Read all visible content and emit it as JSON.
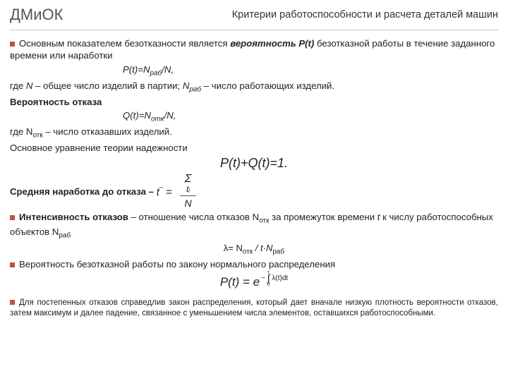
{
  "header": {
    "left": "ДМиОК",
    "right": "Критерии работоспособности и расчета деталей машин"
  },
  "body": {
    "p1a": "Основным показателем безотказности является ",
    "p1b": "вероятность P(t)",
    "p1c": " безотказной работы в течение заданного времени или наработки",
    "eq1": "P(t)=N",
    "eq1sub": "раб",
    "eq1tail": "/N,",
    "p2a": "где ",
    "p2b": "N",
    "p2c": " – общее число изделий в партии; ",
    "p2d": "N",
    "p2dsub": "раб",
    "p2e": " – число работающих изделий.",
    "p3": "Вероятность отказа",
    "eq2": "Q(t)=N",
    "eq2sub": "отк",
    "eq2tail": "/N,",
    "p4a": "где N",
    "p4sub": "отк",
    "p4b": " – число отказавших изделий.",
    "p5": "Основное уравнение теории надежности",
    "eq3": "P(t)+Q(t)=1.",
    "p6": "Средняя наработка до отказа –",
    "t_eq_lhs": "t‾ = ",
    "t_eq_num_sigma": "Σ",
    "t_eq_num_t": "tᵢ",
    "t_eq_den": "N",
    "p7a": "Интенсивность отказов",
    "p7b": " – отношение числа отказов N",
    "p7sub": "отк",
    "p7c": " за промежуток времени ",
    "p7d": "t",
    "p7e": " к числу работоспособных объектов N",
    "p7sub2": "раб",
    "lambda_a": "λ= N",
    "lambda_sub1": "отк",
    "lambda_mid": " / t·N",
    "lambda_sub2": "раб",
    "p8": "Вероятность безотказной работы по закону нормального распределения",
    "exp_lhs": "P(t) = e",
    "exp_upper": "t",
    "exp_int": "∫",
    "exp_lower": "0",
    "exp_body": "λ(t)dt",
    "exp_minus": "−",
    "final": "Для постепенных отказов справедлив закон распределения, который дает вначале низкую плотность вероятности отказов, затем максимум и далее падение, связанное с уменьшением числа элементов, оставшихся работоспособными."
  },
  "colors": {
    "bullet": "#c0504d",
    "text": "#333333",
    "divider": "#cccccc"
  }
}
